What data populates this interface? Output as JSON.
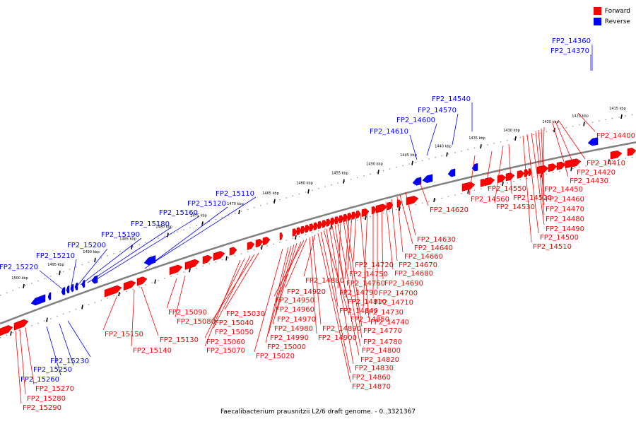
{
  "caption": "Faecalibacterium prausnitzii L2/6 draft genome. - 0..3321367",
  "legend": [
    {
      "label": "Forward",
      "color": "#ff0000"
    },
    {
      "label": "Reverse",
      "color": "#0000ff"
    }
  ],
  "colors": {
    "forward": "#ff0000",
    "reverse": "#0000ff",
    "backbone": "#808080"
  },
  "ticks": [
    "1415 kbp",
    "1420 kbp",
    "1425 kbp",
    "1430 kbp",
    "1435 kbp",
    "1440 kbp",
    "1445 kbp",
    "1450 kbp",
    "1455 kbp",
    "1460 kbp",
    "1465 kbp",
    "1470 kbp",
    "1475 kbp",
    "1480 kbp",
    "1485 kbp",
    "1490 kbp",
    "1495 kbp",
    "1500 kbp"
  ],
  "reverse_labels": [
    "FP2_14360",
    "FP2_14370",
    "FP2_14540",
    "FP2_14570",
    "FP2_14600",
    "FP2_14610",
    "FP2_15110",
    "FP2_15120",
    "FP2_15160",
    "FP2_15180",
    "FP2_15190",
    "FP2_15200",
    "FP2_15210",
    "FP2_15220",
    "FP2_15230",
    "FP2_15250",
    "FP2_15260"
  ],
  "forward_labels": [
    "FP2_14400",
    "FP2_14410",
    "FP2_14420",
    "FP2_14430",
    "FP2_14450",
    "FP2_14460",
    "FP2_14470",
    "FP2_14480",
    "FP2_14490",
    "FP2_14500",
    "FP2_14510",
    "FP2_14520",
    "FP2_14530",
    "FP2_14550",
    "FP2_14560",
    "FP2_14620",
    "FP2_14630",
    "FP2_14640",
    "FP2_14660",
    "FP2_14670",
    "FP2_14680",
    "FP2_14690",
    "FP2_14700",
    "FP2_14710",
    "FP2_14720",
    "FP2_14730",
    "FP2_14740",
    "FP2_14750",
    "FP2_14760",
    "FP2_14770",
    "FP2_14780",
    "FP2_14790",
    "FP2_14800",
    "FP2_14810",
    "FP2_14820",
    "FP2_14830",
    "FP2_14840",
    "FP2_14850",
    "FP2_14860",
    "FP2_14870",
    "FP2_14880",
    "FP2_14890",
    "FP2_14900",
    "FP2_14920",
    "FP2_14950",
    "FP2_14960",
    "FP2_14970",
    "FP2_14980",
    "FP2_14990",
    "FP2_15000",
    "FP2_15020",
    "FP2_15030",
    "FP2_15040",
    "FP2_15050",
    "FP2_15060",
    "FP2_15070",
    "FP2_15080",
    "FP2_15090",
    "FP2_15130",
    "FP2_15140",
    "FP2_15150",
    "FP2_15270",
    "FP2_15280",
    "FP2_15290"
  ]
}
